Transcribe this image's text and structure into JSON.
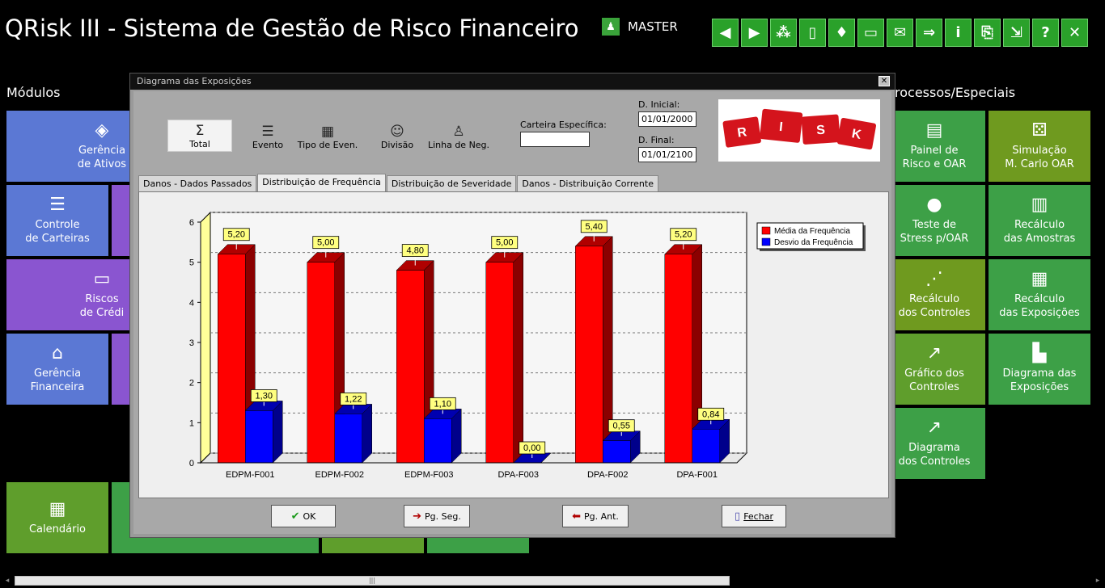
{
  "app": {
    "title": "QRisk III - Sistema de Gestão de Risco Financeiro",
    "user": "MASTER"
  },
  "toolbar": {
    "buttons": [
      {
        "icon": "arrow-left-icon",
        "glyph": "◀"
      },
      {
        "icon": "arrow-right-icon",
        "glyph": "▶"
      },
      {
        "icon": "traffic-light-icon",
        "glyph": "⁂"
      },
      {
        "icon": "column-icon",
        "glyph": "▯"
      },
      {
        "icon": "paint-bucket-icon",
        "glyph": "♦"
      },
      {
        "icon": "monitor-icon",
        "glyph": "▭"
      },
      {
        "icon": "mail-check-icon",
        "glyph": "✉"
      },
      {
        "icon": "forward-icon",
        "glyph": "⇒"
      },
      {
        "icon": "info-icon",
        "glyph": "i"
      },
      {
        "icon": "document-settings-icon",
        "glyph": "⎘"
      },
      {
        "icon": "exit-door-icon",
        "glyph": "⇲"
      },
      {
        "icon": "help-icon",
        "glyph": "?"
      },
      {
        "icon": "close-icon",
        "glyph": "✕"
      }
    ]
  },
  "sections": {
    "modules": "Módulos",
    "processes": "rocessos/Especiais"
  },
  "left_tiles": {
    "gerencia_ativos": {
      "l1": "Gerência",
      "l2": "de Ativos"
    },
    "controle_carteiras": {
      "l1": "Controle",
      "l2": "de Carteiras"
    },
    "riscos_credito": {
      "l1": "Riscos",
      "l2": "de  Crédi"
    },
    "gerencia_financeira": {
      "l1": "Gerência",
      "l2": "Financeira"
    },
    "calendario": {
      "l1": "Calendário"
    }
  },
  "right_tiles": [
    {
      "id": "painel",
      "l1": "Painel de",
      "l2": "Risco e OAR",
      "icon": "dashboard-icon",
      "glyph": "▤"
    },
    {
      "id": "simulacao",
      "l1": "Simulação",
      "l2": "M. Carlo OAR",
      "icon": "dice-icon",
      "glyph": "⚄"
    },
    {
      "id": "teste",
      "l1": "Teste de",
      "l2": "Stress p/OAR",
      "icon": "bomb-icon",
      "glyph": "●"
    },
    {
      "id": "recalc-amostras",
      "l1": "Recálculo",
      "l2": "das Amostras",
      "icon": "bar-chart-icon",
      "glyph": "▥"
    },
    {
      "id": "recalc-controles",
      "l1": "Recálculo",
      "l2": "dos Controles",
      "icon": "scatter-icon",
      "glyph": "⋰"
    },
    {
      "id": "recalc-exposicoes",
      "l1": "Recálculo",
      "l2": "das Exposições",
      "icon": "calculator-icon",
      "glyph": "▦"
    },
    {
      "id": "grafico-controles",
      "l1": "Gráfico dos",
      "l2": "Controles",
      "icon": "line-chart-icon",
      "glyph": "↗"
    },
    {
      "id": "diagrama-exposicoes",
      "l1": "Diagrama das",
      "l2": "Exposições",
      "icon": "histogram-icon",
      "glyph": "▙"
    },
    {
      "id": "diagrama-controles",
      "l1": "Diagrama",
      "l2": "dos Controles",
      "icon": "trend-icon",
      "glyph": "↗"
    }
  ],
  "dialog": {
    "title": "Diagrama das Exposições",
    "modes": [
      {
        "label": "Total",
        "icon": "sigma-icon",
        "glyph": "Σ",
        "active": true
      },
      {
        "label": "Evento",
        "icon": "list-icon",
        "glyph": "☰",
        "active": false
      },
      {
        "label": "Tipo de Even.",
        "icon": "grid-icon",
        "glyph": "▦",
        "active": false
      },
      {
        "label": "Divisão",
        "icon": "users-icon",
        "glyph": "☺",
        "active": false
      },
      {
        "label": "Linha de Neg.",
        "icon": "person-walking-icon",
        "glyph": "♙",
        "active": false
      }
    ],
    "carteira_label": "Carteira Específica:",
    "carteira_value": "",
    "d_inicial_label": "D. Inicial:",
    "d_inicial_value": "01/01/2000",
    "d_final_label": "D. Final:",
    "d_final_value": "01/01/2100",
    "banner_letters": [
      "R",
      "I",
      "S",
      "K"
    ],
    "tabs": [
      {
        "label": "Danos - Dados Passados",
        "active": false
      },
      {
        "label": "Distribuição de Frequência",
        "active": true
      },
      {
        "label": "Distribuição de Severidade",
        "active": false
      },
      {
        "label": "Danos - Distribuição Corrente",
        "active": false
      }
    ],
    "buttons": {
      "ok": "OK",
      "next": "Pg. Seg.",
      "prev": "Pg. Ant.",
      "close": "Fechar"
    }
  },
  "chart_data": {
    "type": "bar",
    "categories": [
      "EDPM-F001",
      "EDPM-F002",
      "EDPM-F003",
      "DPA-F003",
      "DPA-F002",
      "DPA-F001"
    ],
    "series": [
      {
        "name": "Média da Frequência",
        "color": "#ff0000",
        "values": [
          5.2,
          5.0,
          4.8,
          5.0,
          5.4,
          5.2
        ],
        "labels": [
          "5,20",
          "5,00",
          "4,80",
          "5,00",
          "5,40",
          "5,20"
        ]
      },
      {
        "name": "Desvio da Frequência",
        "color": "#0000ff",
        "values": [
          1.3,
          1.22,
          1.1,
          0.0,
          0.55,
          0.84
        ],
        "labels": [
          "1,30",
          "1,22",
          "1,10",
          "0,00",
          "0,55",
          "0,84"
        ]
      }
    ],
    "ylim": [
      0,
      6
    ],
    "yticks": [
      "0",
      "1",
      "2",
      "3",
      "4",
      "5",
      "6"
    ],
    "grid": true,
    "legend": "top-right"
  }
}
